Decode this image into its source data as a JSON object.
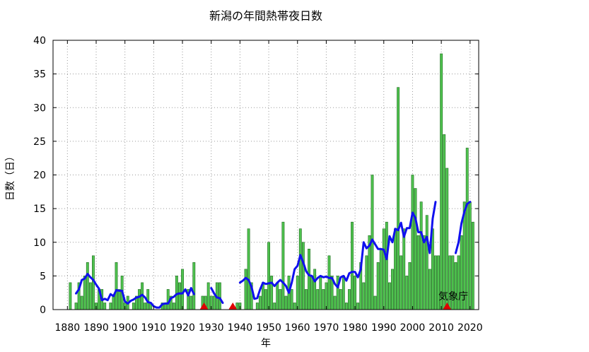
{
  "chart_data": {
    "type": "bar",
    "title": "新潟の年間熱帯夜日数",
    "xlabel": "年",
    "ylabel": "日数（日）",
    "xlim": [
      1875,
      2023
    ],
    "ylim": [
      0,
      40
    ],
    "xticks": [
      1880,
      1890,
      1900,
      1910,
      1920,
      1930,
      1940,
      1950,
      1960,
      1970,
      1980,
      1990,
      2000,
      2010,
      2020
    ],
    "yticks": [
      0,
      5,
      10,
      15,
      20,
      25,
      30,
      35,
      40
    ],
    "grid": true,
    "annotation": "気象庁",
    "colors": {
      "bars": "#4fc34f",
      "bar_edge": "#1f6b1f",
      "moving_average": "#1010ee",
      "markers": "#e00000"
    },
    "series": [
      {
        "kind": "bars",
        "years": [
          1881,
          1882,
          1883,
          1884,
          1885,
          1886,
          1887,
          1888,
          1889,
          1890,
          1891,
          1892,
          1893,
          1894,
          1895,
          1896,
          1897,
          1898,
          1899,
          1900,
          1901,
          1902,
          1903,
          1904,
          1905,
          1906,
          1907,
          1908,
          1909,
          1910,
          1911,
          1912,
          1913,
          1914,
          1915,
          1916,
          1917,
          1918,
          1919,
          1920,
          1921,
          1922,
          1923,
          1924,
          1925,
          1926,
          1927,
          1928,
          1929,
          1930,
          1931,
          1932,
          1933,
          1934,
          1935,
          1936,
          1937,
          1938,
          1939,
          1940,
          1941,
          1942,
          1943,
          1944,
          1945,
          1946,
          1947,
          1948,
          1949,
          1950,
          1951,
          1952,
          1953,
          1954,
          1955,
          1956,
          1957,
          1958,
          1959,
          1960,
          1961,
          1962,
          1963,
          1964,
          1965,
          1966,
          1967,
          1968,
          1969,
          1970,
          1971,
          1972,
          1973,
          1974,
          1975,
          1976,
          1977,
          1978,
          1979,
          1980,
          1981,
          1982,
          1983,
          1984,
          1985,
          1986,
          1987,
          1988,
          1989,
          1990,
          1991,
          1992,
          1993,
          1994,
          1995,
          1996,
          1997,
          1998,
          1999,
          2000,
          2001,
          2002,
          2003,
          2004,
          2005,
          2006,
          2007,
          2008,
          2009,
          2010,
          2011,
          2012,
          2013,
          2014,
          2015,
          2016,
          2017,
          2018,
          2019,
          2020,
          2021
        ],
        "values": [
          4,
          0,
          1,
          4,
          2,
          5,
          7,
          4,
          8,
          1,
          3,
          3,
          1,
          0,
          1,
          2,
          7,
          3,
          5,
          1,
          2,
          0,
          1,
          2,
          3,
          4,
          1,
          3,
          1,
          0,
          0,
          0,
          1,
          1,
          3,
          2,
          1,
          5,
          4,
          6,
          0,
          3,
          2,
          7,
          0,
          0,
          2,
          2,
          4,
          2,
          2,
          4,
          4,
          0,
          0,
          0,
          0,
          0,
          1,
          1,
          0,
          6,
          12,
          4,
          0,
          1,
          2,
          4,
          3,
          10,
          5,
          1,
          4,
          3,
          13,
          2,
          5,
          3,
          1,
          5,
          12,
          10,
          3,
          9,
          5,
          6,
          3,
          5,
          3,
          4,
          8,
          5,
          2,
          5,
          3,
          5,
          1,
          3,
          13,
          5,
          1,
          7,
          4,
          8,
          11,
          20,
          2,
          7,
          9,
          12,
          13,
          4,
          6,
          12,
          33,
          8,
          12,
          5,
          7,
          20,
          18,
          11,
          16,
          11,
          14,
          6,
          12,
          8,
          8,
          38,
          26,
          21,
          8,
          8,
          7,
          8,
          11,
          16,
          24,
          16,
          13
        ]
      },
      {
        "kind": "moving_average",
        "segments": [
          {
            "years": [
              1883,
              1884,
              1885,
              1886,
              1887,
              1888,
              1889,
              1890,
              1891,
              1892,
              1893,
              1894,
              1895,
              1896,
              1897,
              1898,
              1899,
              1900,
              1901,
              1902,
              1903,
              1904,
              1905,
              1906,
              1907,
              1908,
              1909,
              1910,
              1911,
              1912,
              1913,
              1914,
              1915,
              1916,
              1917,
              1918,
              1919,
              1920,
              1921,
              1922,
              1923,
              1924
            ],
            "values": [
              2.4,
              3.0,
              4.4,
              4.6,
              5.3,
              4.8,
              4.4,
              3.7,
              3.1,
              1.4,
              1.6,
              1.4,
              2.3,
              2.0,
              2.9,
              2.8,
              2.8,
              1.2,
              0.9,
              1.3,
              1.5,
              1.8,
              1.9,
              2.2,
              1.8,
              1.1,
              1.0,
              0.5,
              0.3,
              0.3,
              0.8,
              0.9,
              0.9,
              1.7,
              1.9,
              2.3,
              2.4,
              2.4,
              3.0,
              2.1,
              3.2,
              2.3
            ]
          },
          {
            "years": [
              1930,
              1931,
              1932,
              1933,
              1934
            ],
            "values": [
              3.2,
              2.4,
              1.8,
              1.7,
              1.0
            ]
          },
          {
            "years": [
              1940,
              1941,
              1942,
              1943,
              1944,
              1945,
              1946,
              1947,
              1948,
              1949,
              1950,
              1951,
              1952,
              1953,
              1954,
              1955,
              1956,
              1957,
              1958,
              1959,
              1960,
              1961,
              1962,
              1963,
              1964,
              1965,
              1966,
              1967,
              1968,
              1969,
              1970,
              1971,
              1972,
              1973,
              1974,
              1975,
              1976,
              1977,
              1978,
              1979,
              1980,
              1981,
              1982,
              1983,
              1984,
              1985,
              1986,
              1987,
              1988,
              1989,
              1990,
              1991,
              1992,
              1993,
              1994,
              1995,
              1996,
              1997,
              1998,
              1999,
              2000,
              2001,
              2002,
              2003,
              2004,
              2005,
              2006,
              2007,
              2008
            ],
            "values": [
              4.0,
              4.3,
              4.7,
              4.4,
              3.4,
              1.6,
              1.7,
              3.0,
              4.0,
              3.8,
              3.9,
              4.0,
              3.5,
              4.0,
              4.4,
              4.0,
              3.5,
              2.5,
              4.0,
              6.0,
              6.5,
              8.1,
              7.0,
              5.7,
              5.1,
              5.0,
              4.2,
              4.7,
              5.0,
              4.8,
              4.9,
              4.7,
              4.7,
              3.8,
              3.3,
              4.8,
              5.0,
              4.3,
              5.4,
              5.6,
              5.6,
              4.8,
              6.0,
              10.0,
              9.1,
              9.5,
              10.4,
              9.7,
              9.0,
              9.0,
              8.9,
              7.5,
              10.9,
              10.0,
              12.0,
              11.8,
              12.9,
              10.8,
              12.1,
              12.1,
              14.4,
              13.6,
              11.5,
              11.5,
              10.0,
              10.8,
              8.4,
              13.5,
              16.0
            ]
          },
          {
            "years": [
              2015,
              2016,
              2017,
              2018,
              2019,
              2020
            ],
            "values": [
              8.4,
              10.0,
              12.8,
              14.5,
              15.7,
              16.0
            ]
          }
        ]
      }
    ],
    "markers": [
      1927.5,
      1937.5,
      2012
    ]
  }
}
